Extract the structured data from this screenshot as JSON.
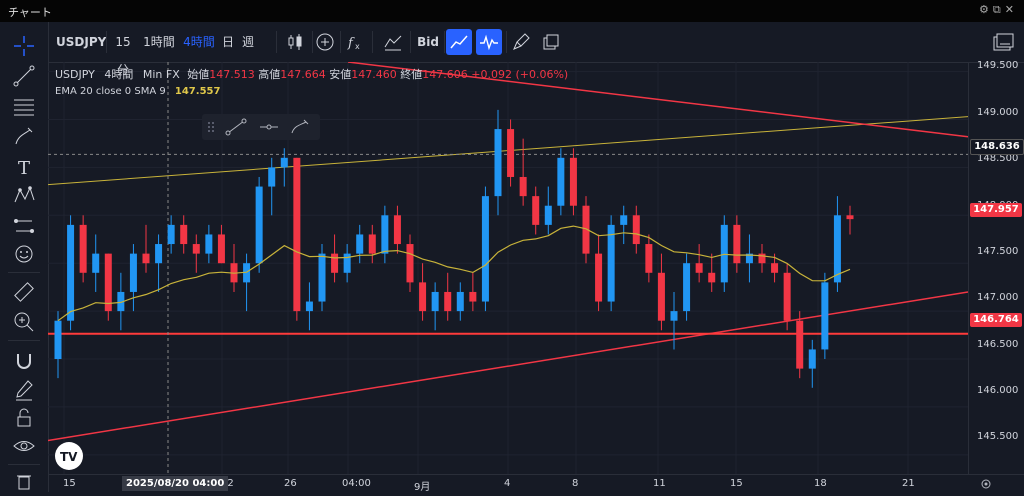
{
  "window": {
    "title": "チャート"
  },
  "toolbar": {
    "symbol": "USDJPY",
    "intervals": [
      "15分",
      "1時間",
      "4時間",
      "日",
      "週"
    ],
    "bid_label": "Bid"
  },
  "legend": {
    "symbol": "USDJPY",
    "interval": "4時間",
    "source": "Min FX",
    "open_label": "始値",
    "open": "147.513",
    "high_label": "高値",
    "high": "147.664",
    "low_label": "安値",
    "low": "147.460",
    "close_label": "終値",
    "close": "147.606",
    "change": "+0.092 (+0.06%)",
    "ema_label": "EMA 20 close 0 SMA 9",
    "ema_value": "147.557"
  },
  "yaxis": {
    "ticks": [
      "149.500",
      "149.000",
      "148.500",
      "148.000",
      "147.500",
      "147.000",
      "146.500",
      "146.000",
      "145.500"
    ],
    "crosshair_price": "148.636",
    "last_price": "147.957",
    "line_price": "146.764"
  },
  "xaxis": {
    "ticks": [
      "15",
      "22",
      "26",
      "04:00",
      "9月",
      "4",
      "8",
      "11",
      "15",
      "18",
      "21"
    ],
    "crosshair_time": "2025/08/20  04:00"
  },
  "colors": {
    "up": "#2196f3",
    "down": "#f23645",
    "ema": "#c8b33a",
    "accent": "#2962ff",
    "line": "#f23645",
    "hline": "#ff3b3b"
  },
  "chart_data": {
    "type": "candlestick",
    "y_range": [
      145.3,
      149.6
    ],
    "candles": [
      {
        "o": 146.5,
        "h": 147.0,
        "l": 146.3,
        "c": 146.9
      },
      {
        "o": 146.9,
        "h": 148.0,
        "l": 146.8,
        "c": 147.9
      },
      {
        "o": 147.9,
        "h": 148.0,
        "l": 147.3,
        "c": 147.4
      },
      {
        "o": 147.4,
        "h": 147.8,
        "l": 147.2,
        "c": 147.6
      },
      {
        "o": 147.6,
        "h": 147.6,
        "l": 146.9,
        "c": 147.0
      },
      {
        "o": 147.0,
        "h": 147.4,
        "l": 146.8,
        "c": 147.2
      },
      {
        "o": 147.2,
        "h": 147.7,
        "l": 147.0,
        "c": 147.6
      },
      {
        "o": 147.6,
        "h": 147.9,
        "l": 147.4,
        "c": 147.5
      },
      {
        "o": 147.5,
        "h": 147.8,
        "l": 147.2,
        "c": 147.7
      },
      {
        "o": 147.7,
        "h": 148.0,
        "l": 147.6,
        "c": 147.9
      },
      {
        "o": 147.9,
        "h": 148.0,
        "l": 147.6,
        "c": 147.7
      },
      {
        "o": 147.7,
        "h": 147.8,
        "l": 147.4,
        "c": 147.6
      },
      {
        "o": 147.6,
        "h": 147.9,
        "l": 147.5,
        "c": 147.8
      },
      {
        "o": 147.8,
        "h": 147.9,
        "l": 147.5,
        "c": 147.5
      },
      {
        "o": 147.5,
        "h": 147.7,
        "l": 147.2,
        "c": 147.3
      },
      {
        "o": 147.3,
        "h": 147.6,
        "l": 147.0,
        "c": 147.5
      },
      {
        "o": 147.5,
        "h": 148.4,
        "l": 147.4,
        "c": 148.3
      },
      {
        "o": 148.3,
        "h": 148.6,
        "l": 148.0,
        "c": 148.5
      },
      {
        "o": 148.5,
        "h": 148.7,
        "l": 148.3,
        "c": 148.6
      },
      {
        "o": 148.6,
        "h": 148.6,
        "l": 146.9,
        "c": 147.0
      },
      {
        "o": 147.0,
        "h": 147.3,
        "l": 146.8,
        "c": 147.1
      },
      {
        "o": 147.1,
        "h": 147.7,
        "l": 147.0,
        "c": 147.6
      },
      {
        "o": 147.6,
        "h": 147.8,
        "l": 147.3,
        "c": 147.4
      },
      {
        "o": 147.4,
        "h": 147.7,
        "l": 147.3,
        "c": 147.6
      },
      {
        "o": 147.6,
        "h": 147.9,
        "l": 147.5,
        "c": 147.8
      },
      {
        "o": 147.8,
        "h": 147.9,
        "l": 147.5,
        "c": 147.6
      },
      {
        "o": 147.6,
        "h": 148.1,
        "l": 147.5,
        "c": 148.0
      },
      {
        "o": 148.0,
        "h": 148.1,
        "l": 147.6,
        "c": 147.7
      },
      {
        "o": 147.7,
        "h": 147.8,
        "l": 147.2,
        "c": 147.3
      },
      {
        "o": 147.3,
        "h": 147.5,
        "l": 146.9,
        "c": 147.0
      },
      {
        "o": 147.0,
        "h": 147.3,
        "l": 146.8,
        "c": 147.2
      },
      {
        "o": 147.2,
        "h": 147.4,
        "l": 146.9,
        "c": 147.0
      },
      {
        "o": 147.0,
        "h": 147.3,
        "l": 146.9,
        "c": 147.2
      },
      {
        "o": 147.2,
        "h": 147.4,
        "l": 147.0,
        "c": 147.1
      },
      {
        "o": 147.1,
        "h": 148.3,
        "l": 147.0,
        "c": 148.2
      },
      {
        "o": 148.2,
        "h": 149.1,
        "l": 148.0,
        "c": 148.9
      },
      {
        "o": 148.9,
        "h": 149.0,
        "l": 148.3,
        "c": 148.4
      },
      {
        "o": 148.4,
        "h": 148.8,
        "l": 148.1,
        "c": 148.2
      },
      {
        "o": 148.2,
        "h": 148.3,
        "l": 147.8,
        "c": 147.9
      },
      {
        "o": 147.9,
        "h": 148.3,
        "l": 147.8,
        "c": 148.1
      },
      {
        "o": 148.1,
        "h": 148.7,
        "l": 148.0,
        "c": 148.6
      },
      {
        "o": 148.6,
        "h": 148.7,
        "l": 148.0,
        "c": 148.1
      },
      {
        "o": 148.1,
        "h": 148.2,
        "l": 147.5,
        "c": 147.6
      },
      {
        "o": 147.6,
        "h": 147.8,
        "l": 147.0,
        "c": 147.1
      },
      {
        "o": 147.1,
        "h": 148.0,
        "l": 147.0,
        "c": 147.9
      },
      {
        "o": 147.9,
        "h": 148.1,
        "l": 147.7,
        "c": 148.0
      },
      {
        "o": 148.0,
        "h": 148.1,
        "l": 147.6,
        "c": 147.7
      },
      {
        "o": 147.7,
        "h": 147.8,
        "l": 147.3,
        "c": 147.4
      },
      {
        "o": 147.4,
        "h": 147.6,
        "l": 146.8,
        "c": 146.9
      },
      {
        "o": 146.9,
        "h": 147.2,
        "l": 146.6,
        "c": 147.0
      },
      {
        "o": 147.0,
        "h": 147.6,
        "l": 146.9,
        "c": 147.5
      },
      {
        "o": 147.5,
        "h": 147.7,
        "l": 147.3,
        "c": 147.4
      },
      {
        "o": 147.4,
        "h": 147.6,
        "l": 147.2,
        "c": 147.3
      },
      {
        "o": 147.3,
        "h": 148.0,
        "l": 147.2,
        "c": 147.9
      },
      {
        "o": 147.9,
        "h": 148.0,
        "l": 147.4,
        "c": 147.5
      },
      {
        "o": 147.5,
        "h": 147.8,
        "l": 147.3,
        "c": 147.6
      },
      {
        "o": 147.6,
        "h": 147.7,
        "l": 147.4,
        "c": 147.5
      },
      {
        "o": 147.5,
        "h": 147.6,
        "l": 147.3,
        "c": 147.4
      },
      {
        "o": 147.4,
        "h": 147.5,
        "l": 146.8,
        "c": 146.9
      },
      {
        "o": 146.9,
        "h": 147.0,
        "l": 146.3,
        "c": 146.4
      },
      {
        "o": 146.4,
        "h": 146.7,
        "l": 146.2,
        "c": 146.6
      },
      {
        "o": 146.6,
        "h": 147.4,
        "l": 146.5,
        "c": 147.3
      },
      {
        "o": 147.3,
        "h": 148.2,
        "l": 147.2,
        "c": 148.0
      },
      {
        "o": 148.0,
        "h": 148.1,
        "l": 147.8,
        "c": 147.96
      }
    ]
  }
}
